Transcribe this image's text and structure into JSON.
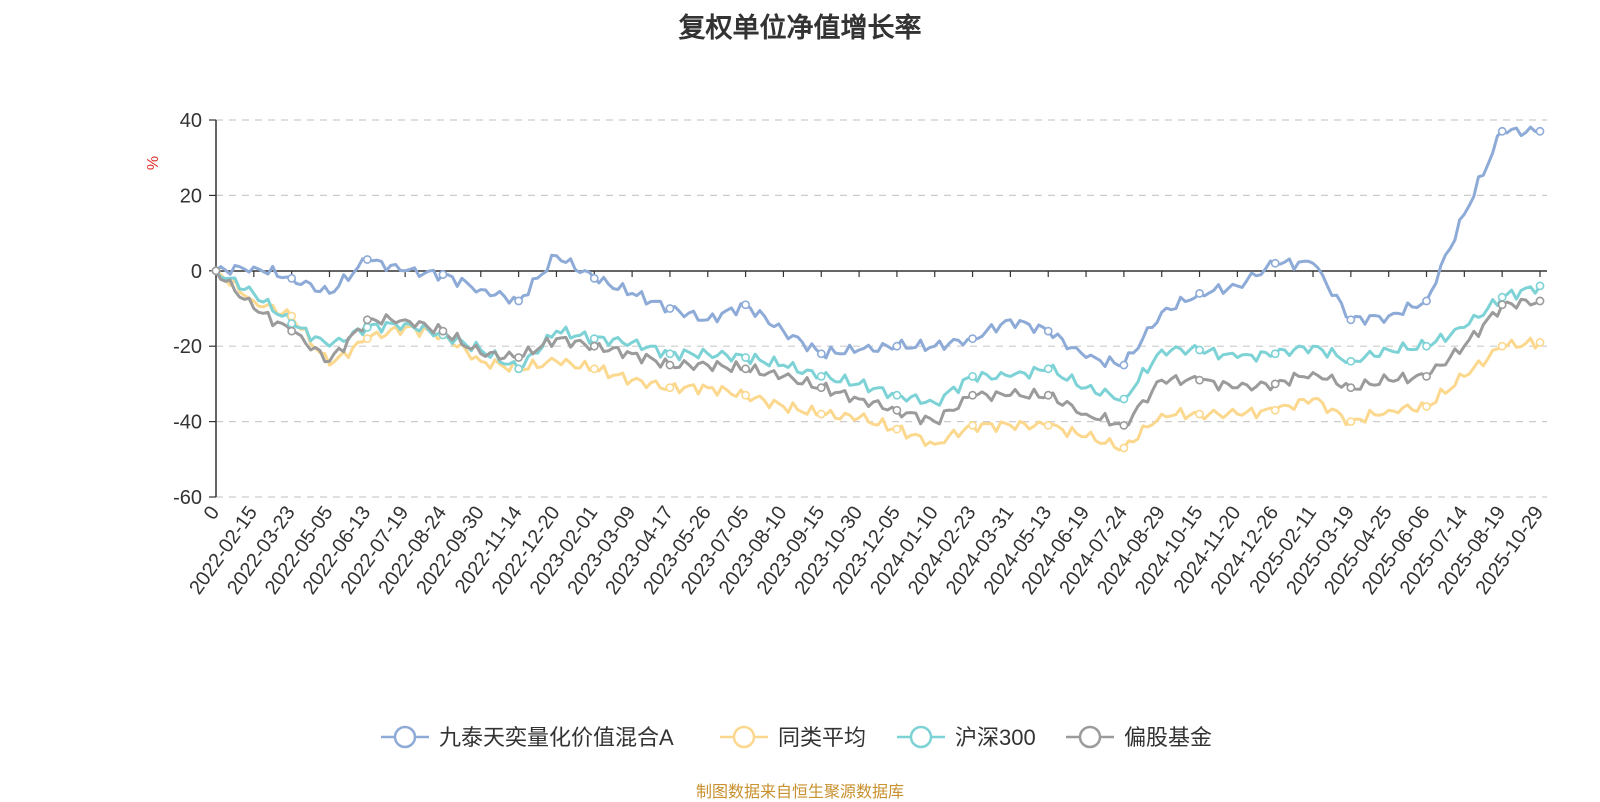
{
  "chart_data": {
    "type": "line",
    "title": "复权单位净值增长率",
    "ylabel": "%",
    "xlabel": "",
    "ylim": [
      -60,
      40
    ],
    "y_ticks": [
      40,
      20,
      0,
      -20,
      -40,
      -60
    ],
    "x_first_label": "0",
    "x_ticks": [
      "2022-02-15",
      "2022-03-23",
      "2022-05-05",
      "2022-06-13",
      "2022-07-19",
      "2022-08-24",
      "2022-09-30",
      "2022-11-14",
      "2022-12-20",
      "2023-02-01",
      "2023-03-09",
      "2023-04-17",
      "2023-05-26",
      "2023-07-05",
      "2023-08-10",
      "2023-09-15",
      "2023-10-30",
      "2023-12-05",
      "2024-01-10",
      "2024-02-23",
      "2024-03-31",
      "2024-05-13",
      "2024-06-19",
      "2024-07-24",
      "2024-08-29",
      "2024-10-15",
      "2024-11-20",
      "2024-12-26",
      "2025-02-11",
      "2025-03-19",
      "2025-04-25",
      "2025-06-06",
      "2025-07-14",
      "2025-08-19",
      "2025-10-29"
    ],
    "grid": true,
    "legend_position": "bottom",
    "x_index": [
      0,
      1,
      2,
      3,
      4,
      5,
      6,
      7,
      8,
      9,
      10,
      11,
      12,
      13,
      14,
      15,
      16,
      17,
      18,
      19,
      20,
      21,
      22,
      23,
      24,
      25,
      26,
      27,
      28,
      29,
      30,
      31,
      32,
      33,
      34,
      35
    ],
    "series": [
      {
        "name": "九泰天奕量化价值混合A",
        "color": "#8eabd8",
        "values": [
          0,
          1,
          -2,
          -6,
          3,
          0,
          -1,
          -5,
          -8,
          4,
          -2,
          -6,
          -10,
          -13,
          -9,
          -16,
          -22,
          -21,
          -20,
          -20,
          -18,
          -13,
          -16,
          -23,
          -25,
          -11,
          -6,
          -4,
          2,
          2,
          -13,
          -12,
          -8,
          15,
          37,
          37
        ]
      },
      {
        "name": "同类平均",
        "color": "#fbd88d",
        "values": [
          0,
          -8,
          -12,
          -25,
          -18,
          -15,
          -17,
          -24,
          -26,
          -24,
          -26,
          -29,
          -31,
          -31,
          -33,
          -36,
          -38,
          -39,
          -42,
          -46,
          -41,
          -41,
          -41,
          -44,
          -47,
          -38,
          -38,
          -38,
          -37,
          -34,
          -40,
          -37,
          -36,
          -28,
          -20,
          -19
        ]
      },
      {
        "name": "沪深300",
        "color": "#7dd2d6",
        "values": [
          0,
          -6,
          -14,
          -20,
          -15,
          -14,
          -17,
          -21,
          -26,
          -16,
          -18,
          -19,
          -22,
          -22,
          -23,
          -25,
          -28,
          -30,
          -33,
          -35,
          -28,
          -28,
          -26,
          -31,
          -34,
          -21,
          -21,
          -23,
          -22,
          -20,
          -24,
          -21,
          -20,
          -15,
          -7,
          -4
        ]
      },
      {
        "name": "偏股基金",
        "color": "#9b9b9b",
        "values": [
          0,
          -10,
          -16,
          -24,
          -13,
          -13,
          -16,
          -22,
          -23,
          -18,
          -20,
          -22,
          -25,
          -25,
          -26,
          -28,
          -31,
          -34,
          -37,
          -40,
          -33,
          -33,
          -33,
          -38,
          -41,
          -29,
          -29,
          -31,
          -30,
          -27,
          -31,
          -29,
          -28,
          -20,
          -9,
          -8
        ]
      }
    ]
  },
  "source_note": "制图数据来自恒生聚源数据库"
}
